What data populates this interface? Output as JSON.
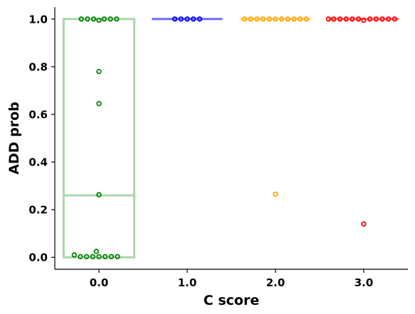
{
  "chart_data": {
    "type": "scatter",
    "xlabel": "C score",
    "ylabel": "ADD prob",
    "xlim": [
      -0.5,
      3.5
    ],
    "ylim": [
      -0.05,
      1.05
    ],
    "x_ticks": [
      0,
      1,
      2,
      3
    ],
    "x_tick_labels": [
      "0.0",
      "1.0",
      "2.0",
      "3.0"
    ],
    "y_ticks": [
      0.0,
      0.2,
      0.4,
      0.6,
      0.8,
      1.0
    ],
    "y_tick_labels": [
      "0.0",
      "0.2",
      "0.4",
      "0.6",
      "0.8",
      "1.0"
    ],
    "grid": false,
    "series": [
      {
        "category": 0,
        "color": "#008000",
        "box": {
          "q1": 0.0,
          "median": 0.26,
          "q3": 1.0,
          "whisker_low": 0.0,
          "whisker_high": 1.0,
          "color": "#a9d8a9"
        },
        "points": [
          {
            "x": -0.2,
            "y": 1.0
          },
          {
            "x": -0.13,
            "y": 1.0
          },
          {
            "x": -0.06,
            "y": 1.0
          },
          {
            "x": 0.0,
            "y": 0.995
          },
          {
            "x": 0.06,
            "y": 1.0
          },
          {
            "x": 0.13,
            "y": 1.0
          },
          {
            "x": 0.2,
            "y": 1.0
          },
          {
            "x": 0.0,
            "y": 0.78
          },
          {
            "x": 0.0,
            "y": 0.645
          },
          {
            "x": 0.0,
            "y": 0.263
          },
          {
            "x": -0.03,
            "y": 0.025
          },
          {
            "x": -0.28,
            "y": 0.01
          },
          {
            "x": -0.21,
            "y": 0.003
          },
          {
            "x": -0.14,
            "y": 0.003
          },
          {
            "x": -0.07,
            "y": 0.003
          },
          {
            "x": 0.0,
            "y": 0.003
          },
          {
            "x": 0.07,
            "y": 0.003
          },
          {
            "x": 0.14,
            "y": 0.003
          },
          {
            "x": 0.21,
            "y": 0.003
          }
        ]
      },
      {
        "category": 1,
        "color": "#0000ff",
        "box": {
          "q1": 1.0,
          "median": 1.0,
          "q3": 1.0,
          "whisker_low": 1.0,
          "whisker_high": 1.0,
          "color": "#6a6aff"
        },
        "points": [
          {
            "x": 0.86,
            "y": 1.0
          },
          {
            "x": 0.93,
            "y": 1.0
          },
          {
            "x": 1.0,
            "y": 1.0
          },
          {
            "x": 1.07,
            "y": 1.0
          },
          {
            "x": 1.14,
            "y": 1.0
          }
        ]
      },
      {
        "category": 2,
        "color": "#ffa500",
        "box": {
          "q1": 1.0,
          "median": 1.0,
          "q3": 1.0,
          "whisker_low": 1.0,
          "whisker_high": 1.0,
          "color": "#ffd27a"
        },
        "points": [
          {
            "x": 1.65,
            "y": 1.0
          },
          {
            "x": 1.72,
            "y": 1.0
          },
          {
            "x": 1.79,
            "y": 1.0
          },
          {
            "x": 1.86,
            "y": 1.0
          },
          {
            "x": 1.93,
            "y": 1.0
          },
          {
            "x": 2.0,
            "y": 1.0
          },
          {
            "x": 2.07,
            "y": 1.0
          },
          {
            "x": 2.14,
            "y": 1.0
          },
          {
            "x": 2.21,
            "y": 1.0
          },
          {
            "x": 2.28,
            "y": 1.0
          },
          {
            "x": 2.35,
            "y": 1.0
          },
          {
            "x": 2.0,
            "y": 0.265
          }
        ]
      },
      {
        "category": 3,
        "color": "#ff0000",
        "box": {
          "q1": 1.0,
          "median": 1.0,
          "q3": 1.0,
          "whisker_low": 1.0,
          "whisker_high": 1.0,
          "color": "#ff7a7a"
        },
        "points": [
          {
            "x": 2.6,
            "y": 1.0
          },
          {
            "x": 2.66,
            "y": 1.0
          },
          {
            "x": 2.73,
            "y": 1.0
          },
          {
            "x": 2.8,
            "y": 1.0
          },
          {
            "x": 2.87,
            "y": 1.0
          },
          {
            "x": 2.94,
            "y": 1.0
          },
          {
            "x": 3.0,
            "y": 0.995
          },
          {
            "x": 3.07,
            "y": 1.0
          },
          {
            "x": 3.14,
            "y": 1.0
          },
          {
            "x": 3.21,
            "y": 1.0
          },
          {
            "x": 3.28,
            "y": 1.0
          },
          {
            "x": 3.35,
            "y": 1.0
          },
          {
            "x": 3.0,
            "y": 0.14
          }
        ]
      }
    ]
  }
}
